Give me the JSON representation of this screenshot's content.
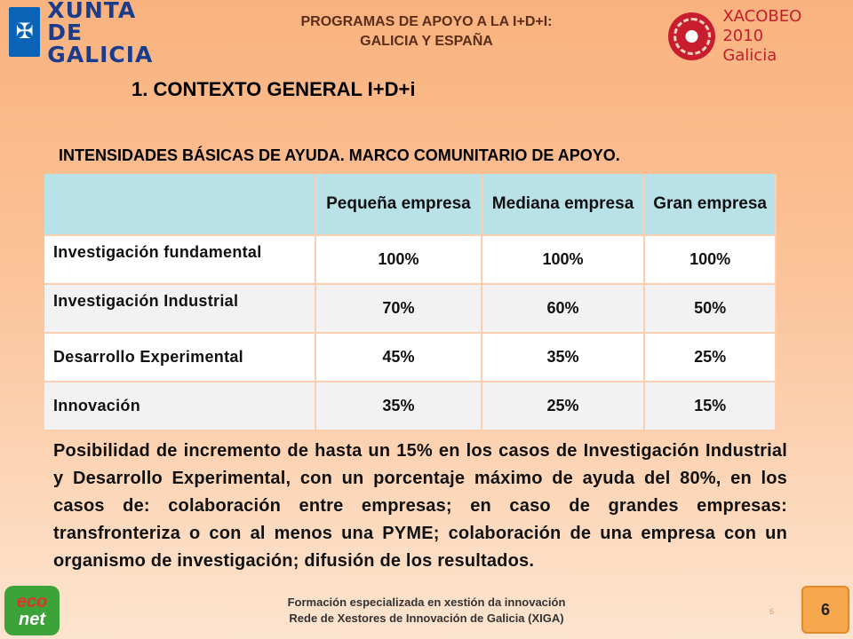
{
  "header": {
    "xunta_logo": {
      "line1": "XUNTA",
      "line2": "DE GALICIA"
    },
    "title_line1": "PROGRAMAS DE APOYO A LA I+D+I:",
    "title_line2": "GALICIA Y ESPAÑA",
    "xacobeo_logo": {
      "line1": "XACOBEO 2010",
      "line2": "Galicia"
    }
  },
  "section_title": "1. CONTEXTO GENERAL I+D+i",
  "table": {
    "title": "INTENSIDADES BÁSICAS DE AYUDA. MARCO COMUNITARIO DE APOYO.",
    "columns": [
      "Pequeña empresa",
      "Mediana empresa",
      "Gran empresa"
    ],
    "rows": [
      {
        "label": "Investigación fundamental",
        "values": [
          "100%",
          "100%",
          "100%"
        ]
      },
      {
        "label": "Investigación Industrial",
        "values": [
          "70%",
          "60%",
          "50%"
        ]
      },
      {
        "label": "Desarrollo Experimental",
        "values": [
          "45%",
          "35%",
          "25%"
        ]
      },
      {
        "label": "Innovación",
        "values": [
          "35%",
          "25%",
          "15%"
        ]
      }
    ]
  },
  "paragraph": {
    "part1": "Posibilidad de incremento de hasta un ",
    "highlight1": "15%",
    "part2": " en los casos de Investigación Industrial y Desarrollo Experimental, con un porcentaje máximo de ayuda del ",
    "highlight2": "80%",
    "part3": ", en los casos de: colaboración entre empresas; en caso de grandes empresas: transfronteriza o con al menos una PYME; colaboración de una empresa con un organismo de investigación; difusión de los resultados."
  },
  "footer": {
    "econet_logo": {
      "line1": "eco",
      "line2": "net"
    },
    "line1": "Formación especializada en xestión da innovación",
    "line2": "Rede de Xestores de Innovación de Galicia (XIGA)",
    "small_number": "6",
    "page_number": "6"
  },
  "colors": {
    "background_top": "#f9b27e",
    "header_cell": "#b9e2e8",
    "page_badge": "#f7a74d"
  }
}
